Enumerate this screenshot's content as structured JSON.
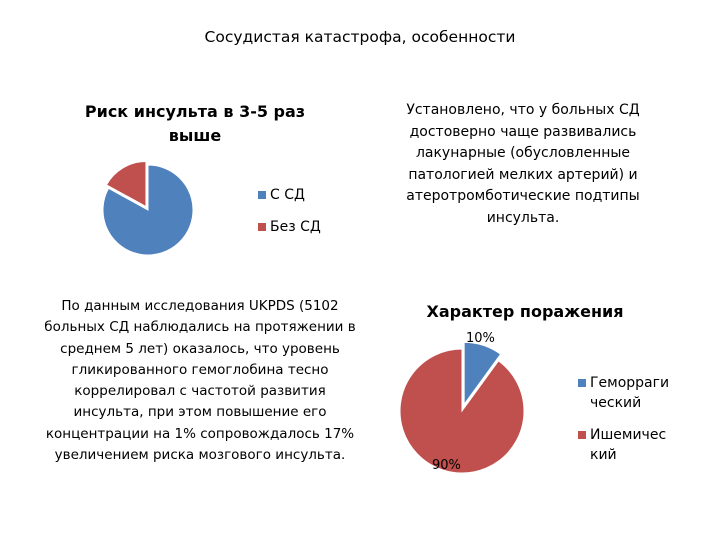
{
  "slide": {
    "title": "Сосудистая катастрофа, особенности"
  },
  "note": "Установлено, что у больных СД достоверно чаще развивались лакунарные (обусловленные патологией мелких артерий) и атеротромботические подтипы инсульта.",
  "ukpds": "По данным исследования UKPDS (5102 больных СД наблюдались на протяжении в среднем 5 лет) оказалось, что уровень гликированного гемоглобина тесно коррелировал с частотой развития инсульта, при этом повышение его концентрации на 1% сопровождалось 17% увеличением риска мозгового инсульта.",
  "chart_data": [
    {
      "type": "pie",
      "title": "Риск инсульта в 3-5 раз выше",
      "legend_position": "right",
      "slices": [
        {
          "name": "С СД",
          "value": 83,
          "color": "#4F81BD",
          "exploded": false
        },
        {
          "name": "Без СД",
          "value": 17,
          "color": "#C0504D",
          "exploded": true
        }
      ]
    },
    {
      "type": "pie",
      "title": "Характер поражения",
      "legend_position": "right",
      "slices": [
        {
          "name": "Геморрагический",
          "legend_lines": [
            "Геморраги",
            "ческий"
          ],
          "value": 10,
          "label": "10%",
          "color": "#4F81BD",
          "exploded": true
        },
        {
          "name": "Ишемический",
          "legend_lines": [
            "Ишемичес",
            "кий"
          ],
          "value": 90,
          "label": "90%",
          "color": "#C0504D",
          "exploded": false
        }
      ]
    }
  ]
}
